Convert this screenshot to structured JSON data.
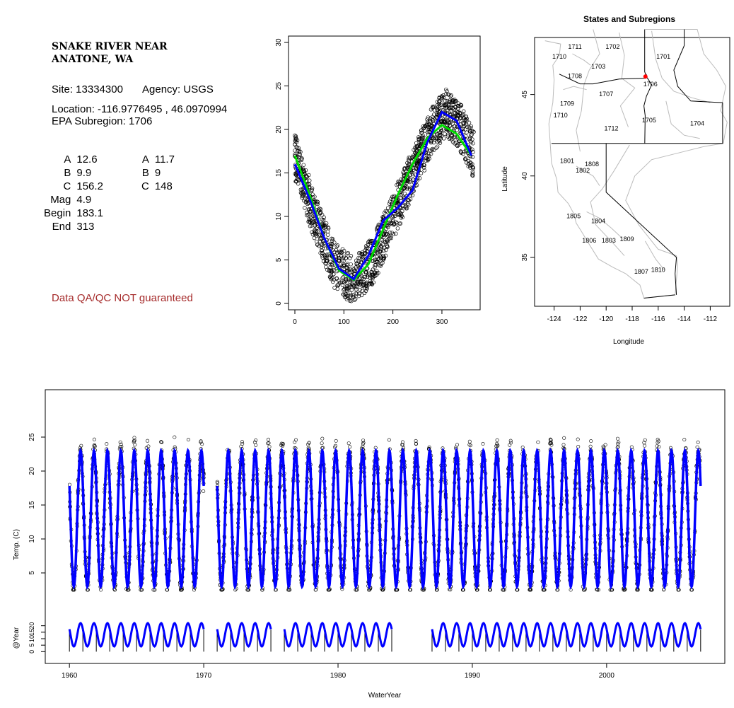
{
  "station": {
    "name_line1": "SNAKE RIVER NEAR",
    "name_line2": "ANATONE, WA",
    "site_label": "Site: 13334300",
    "agency_label": "Agency: USGS",
    "location_label": "Location: -116.9776495 , 46.0970994",
    "subregion_label": "EPA Subregion: 1706"
  },
  "parameters": {
    "left": [
      {
        "label": "A",
        "value": "12.6"
      },
      {
        "label": "B",
        "value": "9.9"
      },
      {
        "label": "C",
        "value": "156.2"
      },
      {
        "label": "Mag",
        "value": "4.9"
      },
      {
        "label": "Begin",
        "value": "183.1"
      },
      {
        "label": "End",
        "value": "313"
      }
    ],
    "right": [
      {
        "label": "A",
        "value": "11.7"
      },
      {
        "label": "B",
        "value": "9"
      },
      {
        "label": "C",
        "value": "148"
      }
    ]
  },
  "disclaimer": "Data QA/QC NOT guaranteed",
  "colors": {
    "fit_blue": "#0000ff",
    "fit_green": "#00dd00",
    "marker": "#ff0000",
    "warn": "#a52a2a",
    "boundary": "#bbbbbb"
  },
  "chart_data": [
    {
      "type": "scatter",
      "title": "",
      "xlabel": "",
      "ylabel": "",
      "xlim": [
        0,
        365
      ],
      "ylim": [
        0,
        30
      ],
      "xticks": [
        0,
        100,
        200,
        300
      ],
      "yticks": [
        0,
        5,
        10,
        15,
        20,
        25,
        30
      ],
      "series": [
        {
          "name": "",
          "style": "black open circles",
          "description_points": [
            [
              0,
              17
            ],
            [
              40,
              10
            ],
            [
              80,
              4.5
            ],
            [
              120,
              2.5
            ],
            [
              160,
              5
            ],
            [
              200,
              10
            ],
            [
              240,
              15
            ],
            [
              280,
              20
            ],
            [
              310,
              22
            ],
            [
              340,
              20
            ],
            [
              365,
              17
            ]
          ]
        },
        {
          "name": "",
          "color": "blue",
          "x": [
            0,
            30,
            60,
            90,
            120,
            150,
            180,
            210,
            240,
            270,
            300,
            330,
            360
          ],
          "y": [
            16,
            12,
            7.5,
            4,
            2.8,
            5.5,
            9.5,
            11,
            13,
            18.5,
            22,
            21,
            17
          ]
        },
        {
          "name": "",
          "color": "green",
          "x": [
            0,
            30,
            60,
            90,
            120,
            150,
            180,
            210,
            240,
            270,
            300,
            330,
            360
          ],
          "y": [
            17,
            12.5,
            7.5,
            3.8,
            2.7,
            4.5,
            8.5,
            12.5,
            16,
            19,
            20.5,
            19.5,
            17
          ]
        }
      ]
    },
    {
      "type": "map",
      "title": "States and Subregions",
      "xlabel": "Longitude",
      "ylabel": "Latitude",
      "xticks": [
        -124,
        -122,
        -120,
        -118,
        -116,
        -114,
        -112
      ],
      "yticks": [
        35,
        40,
        45
      ],
      "xlim": [
        -125.5,
        -110.5
      ],
      "ylim": [
        32,
        48.5
      ],
      "marker": {
        "lon": -116.98,
        "lat": 46.1
      },
      "region_labels": [
        {
          "text": "1702",
          "lon": -119.5,
          "lat": 47.8
        },
        {
          "text": "1701",
          "lon": -115.6,
          "lat": 47.2
        },
        {
          "text": "1711",
          "lon": -122.4,
          "lat": 47.8
        },
        {
          "text": "1710",
          "lon": -123.6,
          "lat": 47.2
        },
        {
          "text": "1703",
          "lon": -120.6,
          "lat": 46.6
        },
        {
          "text": "1708",
          "lon": -122.4,
          "lat": 46.0
        },
        {
          "text": "1706",
          "lon": -116.6,
          "lat": 45.5
        },
        {
          "text": "1707",
          "lon": -120.0,
          "lat": 44.9
        },
        {
          "text": "1709",
          "lon": -123.0,
          "lat": 44.3
        },
        {
          "text": "1710",
          "lon": -123.5,
          "lat": 43.6
        },
        {
          "text": "1705",
          "lon": -116.7,
          "lat": 43.3
        },
        {
          "text": "1704",
          "lon": -113.0,
          "lat": 43.1
        },
        {
          "text": "1712",
          "lon": -119.6,
          "lat": 42.8
        },
        {
          "text": "1801",
          "lon": -123.0,
          "lat": 40.8
        },
        {
          "text": "1808",
          "lon": -121.1,
          "lat": 40.6
        },
        {
          "text": "1802",
          "lon": -121.8,
          "lat": 40.2
        },
        {
          "text": "1805",
          "lon": -122.5,
          "lat": 37.4
        },
        {
          "text": "1804",
          "lon": -120.6,
          "lat": 37.1
        },
        {
          "text": "1806",
          "lon": -121.3,
          "lat": 35.9
        },
        {
          "text": "1803",
          "lon": -119.8,
          "lat": 35.9
        },
        {
          "text": "1809",
          "lon": -118.4,
          "lat": 36.0
        },
        {
          "text": "1807",
          "lon": -117.3,
          "lat": 34.0
        },
        {
          "text": "1810",
          "lon": -116.0,
          "lat": 34.1
        }
      ]
    },
    {
      "type": "line",
      "title": "",
      "xlabel": "WaterYear",
      "ylabel": "Temp. (C)",
      "xticks": [
        1960,
        1970,
        1980,
        1990,
        2000
      ],
      "yticks": [
        5,
        10,
        15,
        20,
        25
      ],
      "xlim": [
        1958.2,
        2008.8
      ],
      "ylim": [
        0,
        30
      ],
      "data_years": [
        1960,
        1961,
        1962,
        1963,
        1964,
        1965,
        1966,
        1967,
        1968,
        1969,
        1971,
        1972,
        1973,
        1974,
        1975,
        1976,
        1977,
        1978,
        1979,
        1980,
        1981,
        1982,
        1983,
        1984,
        1985,
        1986,
        1987,
        1988,
        1989,
        1990,
        1991,
        1992,
        1993,
        1994,
        1995,
        1996,
        1997,
        1998,
        1999,
        2000,
        2001,
        2002,
        2003,
        2004,
        2005,
        2006
      ],
      "seasonal_range": [
        3,
        23
      ]
    },
    {
      "type": "line",
      "title": "",
      "ylabel": "@Year",
      "yticks": [
        0,
        5,
        10,
        15,
        20
      ],
      "ylim": [
        -2,
        28
      ],
      "segments": [
        [
          1960,
          1970
        ],
        [
          1971,
          1975
        ],
        [
          1976,
          1984
        ],
        [
          1987,
          2007
        ]
      ]
    }
  ]
}
